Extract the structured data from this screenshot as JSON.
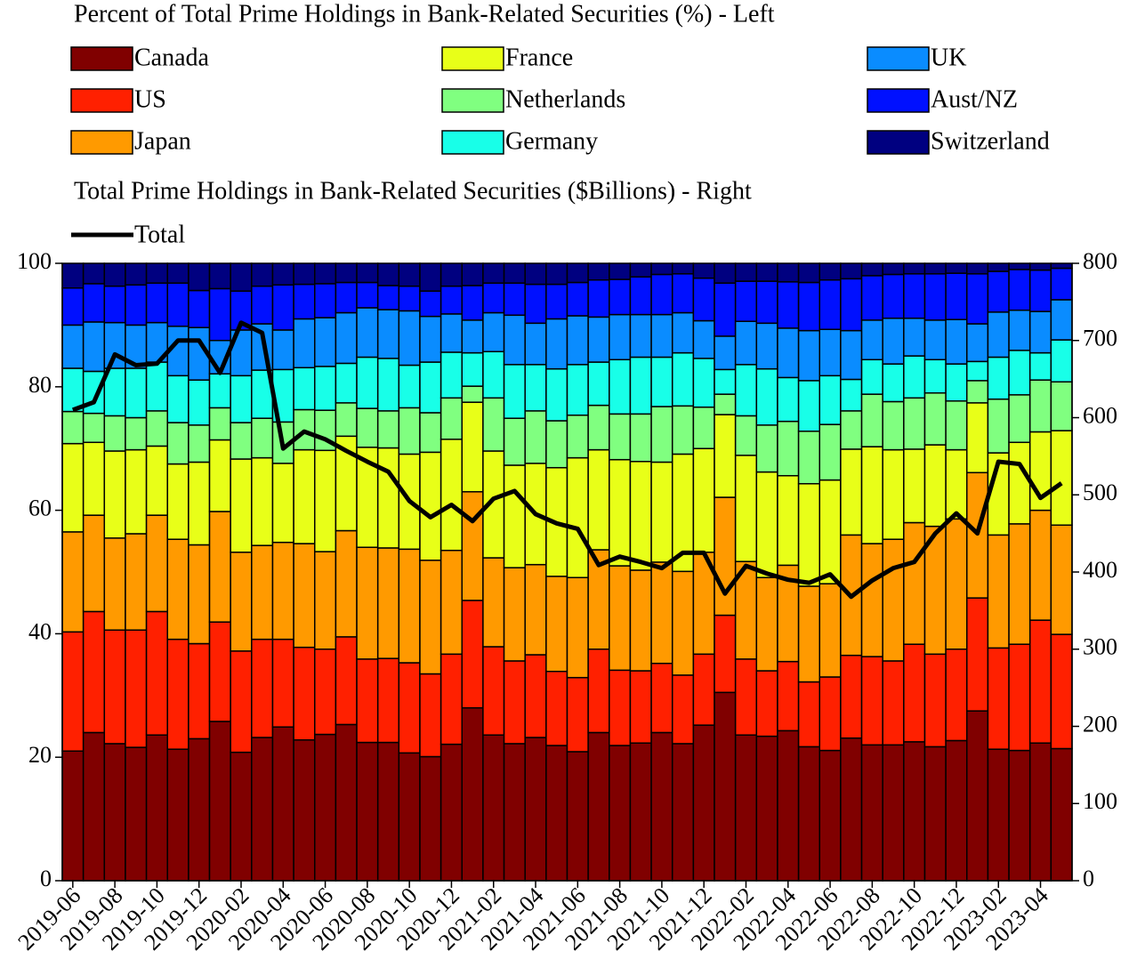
{
  "chart_data": {
    "type": "bar",
    "stacked": true,
    "legend_titles": [
      "Percent of Total Prime Holdings in Bank-Related Securities (%) - Left",
      "Total Prime Holdings in Bank-Related Securities ($Billions) - Right"
    ],
    "categories": [
      "2019-06",
      null,
      "2019-08",
      null,
      "2019-10",
      null,
      "2019-12",
      null,
      "2020-02",
      null,
      "2020-04",
      null,
      "2020-06",
      null,
      "2020-08",
      null,
      "2020-10",
      null,
      "2020-12",
      null,
      "2021-02",
      null,
      "2021-04",
      null,
      "2021-06",
      null,
      "2021-08",
      null,
      "2021-10",
      null,
      "2021-12",
      null,
      "2022-02",
      null,
      "2022-04",
      null,
      "2022-06",
      null,
      "2022-08",
      null,
      "2022-10",
      null,
      "2022-12",
      null,
      "2023-02",
      null,
      "2023-04",
      null
    ],
    "ylim": [
      0,
      100
    ],
    "yticks": [
      0,
      20,
      40,
      60,
      80,
      100
    ],
    "y2lim": [
      0,
      800
    ],
    "y2ticks": [
      0,
      100,
      200,
      300,
      400,
      500,
      600,
      700,
      800
    ],
    "series": [
      {
        "name": "Canada",
        "color": "#800000",
        "values": [
          21,
          24,
          22.2,
          21.6,
          23.6,
          21.3,
          23,
          25.8,
          20.8,
          23.2,
          24.9,
          22.8,
          23.7,
          25.3,
          22.4,
          22.4,
          20.7,
          20.1,
          22.1,
          28,
          23.6,
          22.2,
          23.2,
          21.9,
          20.9,
          24,
          21.9,
          22.3,
          24,
          22.2,
          25.2,
          30.5,
          23.6,
          23.4,
          24.3,
          21.7,
          21.1,
          23.1,
          22,
          22,
          22.5,
          21.7,
          22.7,
          27.5,
          21.3,
          21.1,
          22.3,
          21.4
        ]
      },
      {
        "name": "US",
        "color": "#ff2000",
        "values": [
          19.3,
          19.6,
          18.4,
          19,
          20,
          17.8,
          15.4,
          16.1,
          16.4,
          15.9,
          14.2,
          15,
          13.8,
          14.2,
          13.5,
          13.6,
          14.6,
          13.4,
          14.6,
          17.4,
          14.3,
          13.4,
          13.4,
          12,
          12,
          13.5,
          12.2,
          11.7,
          11.2,
          11.1,
          11.5,
          12.5,
          12.3,
          10.6,
          11.2,
          10.5,
          11.9,
          13.4,
          14.3,
          13.6,
          15.8,
          15,
          14.8,
          18.3,
          16.4,
          17.2,
          19.9,
          18.5
        ]
      },
      {
        "name": "Japan",
        "color": "#ff9a00",
        "values": [
          16.2,
          15.6,
          14.9,
          15.6,
          15.6,
          16.2,
          16,
          17.9,
          16,
          15.2,
          15.7,
          16.8,
          15.8,
          17.2,
          18.1,
          17.9,
          18.4,
          18.4,
          16.8,
          17.6,
          14.4,
          15.1,
          14.6,
          15.4,
          16.2,
          16.1,
          16.9,
          16.3,
          16.4,
          16.8,
          16.5,
          19.1,
          15.8,
          15.1,
          15.6,
          15.5,
          15.1,
          19.5,
          18.3,
          19.7,
          19.7,
          20.7,
          21.1,
          20.3,
          18.3,
          19.5,
          17.8,
          17.7
        ]
      },
      {
        "name": "France",
        "color": "#e8ff18",
        "values": [
          14.3,
          11.8,
          14.1,
          13.6,
          11.2,
          12.2,
          13.4,
          11.6,
          15.1,
          14.2,
          12.8,
          15.2,
          16.4,
          15.3,
          16.2,
          16.2,
          15.4,
          17.5,
          18,
          14.5,
          17.3,
          16.6,
          16.4,
          17.6,
          19.4,
          16.2,
          17.2,
          17.6,
          16.2,
          19,
          16.8,
          13.4,
          17.2,
          17.1,
          14.5,
          16.6,
          16.8,
          13.9,
          15.7,
          14.5,
          11.9,
          13.2,
          11.2,
          11.3,
          13.3,
          13.2,
          12.7,
          15.3
        ]
      },
      {
        "name": "Netherlands",
        "color": "#80ff80",
        "values": [
          5.2,
          4.7,
          5.7,
          5.2,
          5.7,
          6.7,
          6,
          5.2,
          5.9,
          6.4,
          6.7,
          6.5,
          6.5,
          5.4,
          6.3,
          6,
          7.5,
          6.4,
          6.7,
          2.6,
          8.6,
          7.6,
          8.5,
          7.6,
          6.9,
          7.2,
          7.4,
          7.7,
          9,
          7.8,
          6.7,
          3.3,
          6.4,
          7.6,
          8.8,
          8.5,
          9,
          6.2,
          8.5,
          7.8,
          8.3,
          8.4,
          7.9,
          3.6,
          8.7,
          7.7,
          8.4,
          7.9
        ]
      },
      {
        "name": "Germany",
        "color": "#18ffe8",
        "values": [
          7,
          6.8,
          7.7,
          8,
          7.9,
          7.6,
          7.3,
          5.5,
          7.6,
          7.8,
          8.5,
          6.8,
          7.1,
          6.4,
          8.3,
          8.5,
          6.9,
          8.2,
          7.4,
          5.4,
          7.5,
          8.7,
          7.5,
          8.4,
          8.2,
          7,
          8.8,
          9.2,
          8,
          8.6,
          7.9,
          4,
          8.3,
          9.1,
          7.1,
          8.2,
          7.9,
          5.1,
          5.6,
          6.1,
          6.8,
          5.4,
          6,
          3.1,
          6.8,
          7.2,
          4.4,
          6.8
        ]
      },
      {
        "name": "UK",
        "color": "#0a8cff",
        "values": [
          7,
          8,
          7.4,
          7,
          6.4,
          8,
          8.5,
          5.4,
          7.4,
          7.5,
          6.4,
          7.9,
          7.9,
          8.2,
          8,
          7.9,
          8.8,
          7.4,
          6.2,
          5.3,
          6.3,
          8,
          6.7,
          8.1,
          7.9,
          7.3,
          7.3,
          6.9,
          6.9,
          6.5,
          6.1,
          5.4,
          7,
          7.4,
          8,
          8.1,
          7.5,
          7.9,
          6.4,
          7.4,
          6.1,
          6.4,
          7.2,
          6.1,
          7.3,
          6.5,
          6.7,
          6.5
        ]
      },
      {
        "name": "Aust/NZ",
        "color": "#0010ff",
        "values": [
          6,
          6.2,
          5.9,
          6.5,
          6.4,
          7,
          6,
          8.4,
          6.3,
          6.1,
          7.3,
          5.6,
          5.5,
          4.9,
          4.1,
          3.9,
          4,
          4.1,
          4.5,
          5.6,
          4.8,
          5.2,
          6.3,
          5.6,
          5.4,
          6,
          5.7,
          6.1,
          6.5,
          6.3,
          6.9,
          8.6,
          6.5,
          6.8,
          7.5,
          7.8,
          8,
          8.4,
          7.2,
          7.1,
          7.2,
          7.5,
          7.5,
          8.1,
          6.6,
          6.6,
          6.7,
          5.1
        ]
      },
      {
        "name": "Switzerland",
        "color": "#000080",
        "values": [
          4,
          3.3,
          3.7,
          3.5,
          3.2,
          3.2,
          4.4,
          4.1,
          4.5,
          3.7,
          3.5,
          3.4,
          3.3,
          3.1,
          3.1,
          3.6,
          3.7,
          4.5,
          3.7,
          3.6,
          3.2,
          3.2,
          3.4,
          3.4,
          3.1,
          2.7,
          2.6,
          2.2,
          1.8,
          1.7,
          2.4,
          3.2,
          2.9,
          2.9,
          3,
          3.1,
          2.7,
          2.5,
          2,
          1.8,
          1.7,
          1.7,
          1.6,
          1.7,
          1.3,
          1,
          1.1,
          0.8
        ]
      },
      {
        "name": "Total",
        "color": "#000000",
        "axis": "y2",
        "values": [
          610,
          620,
          682,
          668,
          670,
          700,
          700,
          658,
          723,
          710,
          560,
          582,
          572,
          557,
          543,
          530,
          492,
          471,
          487,
          466,
          495,
          505,
          475,
          463,
          456,
          409,
          420,
          413,
          405,
          425,
          425,
          372,
          408,
          398,
          390,
          386,
          397,
          368,
          389,
          405,
          413,
          450,
          476,
          450,
          543,
          540,
          496,
          515
        ]
      }
    ]
  }
}
